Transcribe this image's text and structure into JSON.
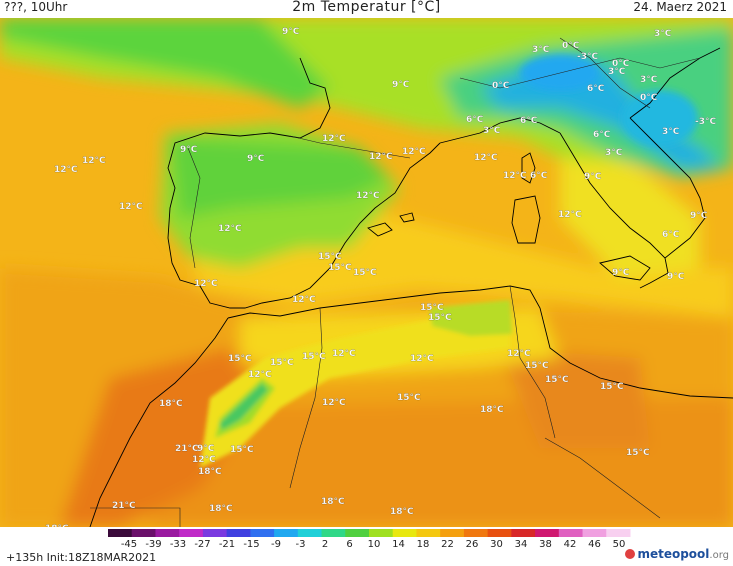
{
  "header": {
    "left": "???, 10Uhr",
    "title": "2m Temperatur [°C]",
    "date": "24. Maerz 2021"
  },
  "footer": {
    "run_info": "+135h Init:18Z18MAR2021",
    "logo_text": "meteopool",
    "logo_domain": ".org"
  },
  "legend": {
    "ticks": [
      "-45",
      "-39",
      "-33",
      "-27",
      "-21",
      "-15",
      "-9",
      "-3",
      "2",
      "6",
      "10",
      "14",
      "18",
      "22",
      "26",
      "30",
      "34",
      "38",
      "42",
      "46",
      "50"
    ],
    "colors": [
      "#3a0a3a",
      "#6a106a",
      "#9a1aa0",
      "#c02ac8",
      "#7a3ae0",
      "#4040e0",
      "#3070f0",
      "#20a8f0",
      "#20d0d8",
      "#30d888",
      "#50d040",
      "#a0e020",
      "#e8e810",
      "#f4c810",
      "#f4a010",
      "#f07810",
      "#e85010",
      "#d82828",
      "#d01870",
      "#e060c0",
      "#f0a0e0",
      "#f8d0f0"
    ]
  },
  "temp_labels": [
    {
      "t": "9°C"
    },
    {
      "t": "3°C"
    },
    {
      "t": "0°C"
    },
    {
      "t": "-3°C"
    },
    {
      "t": "3°C"
    },
    {
      "t": "0°C"
    },
    {
      "t": "3°C"
    },
    {
      "t": "9°C"
    },
    {
      "t": "0°C"
    },
    {
      "t": "6°C"
    },
    {
      "t": "3°C"
    },
    {
      "t": "0°C"
    },
    {
      "t": "6°C"
    },
    {
      "t": "3°C"
    },
    {
      "t": "6°C"
    },
    {
      "t": "3°C"
    },
    {
      "t": "3°C"
    },
    {
      "t": "6°C"
    },
    {
      "t": "-3°C"
    },
    {
      "t": "12°C"
    },
    {
      "t": "9°C"
    },
    {
      "t": "9°C"
    },
    {
      "t": "12°C"
    },
    {
      "t": "12°C"
    },
    {
      "t": "12°C"
    },
    {
      "t": "9°C"
    },
    {
      "t": "12°C"
    },
    {
      "t": "6°C"
    },
    {
      "t": "9°C"
    },
    {
      "t": "12°C"
    },
    {
      "t": "12°C"
    },
    {
      "t": "12°C"
    },
    {
      "t": "12°C"
    },
    {
      "t": "15°C"
    },
    {
      "t": "15°C"
    },
    {
      "t": "9°C"
    },
    {
      "t": "12°C"
    },
    {
      "t": "12°C"
    },
    {
      "t": "9°C"
    },
    {
      "t": "6°C"
    },
    {
      "t": "15°C"
    },
    {
      "t": "12°C"
    },
    {
      "t": "15°C"
    },
    {
      "t": "15°C"
    },
    {
      "t": "15°C"
    },
    {
      "t": "12°C"
    },
    {
      "t": "12°C"
    },
    {
      "t": "12°C"
    },
    {
      "t": "15°C"
    },
    {
      "t": "12°C"
    },
    {
      "t": "15°C"
    },
    {
      "t": "15°C"
    },
    {
      "t": "12°C"
    },
    {
      "t": "18°C"
    },
    {
      "t": "12°C"
    },
    {
      "t": "15°C"
    },
    {
      "t": "18°C"
    },
    {
      "t": "15°C"
    },
    {
      "t": "21°C"
    },
    {
      "t": "9°C"
    },
    {
      "t": "15°C"
    },
    {
      "t": "12°C"
    },
    {
      "t": "18°C"
    },
    {
      "t": "15°C"
    },
    {
      "t": "21°C"
    },
    {
      "t": "18°C"
    },
    {
      "t": "18°C"
    },
    {
      "t": "18°C"
    },
    {
      "t": "15°C"
    },
    {
      "t": "18°C"
    }
  ]
}
